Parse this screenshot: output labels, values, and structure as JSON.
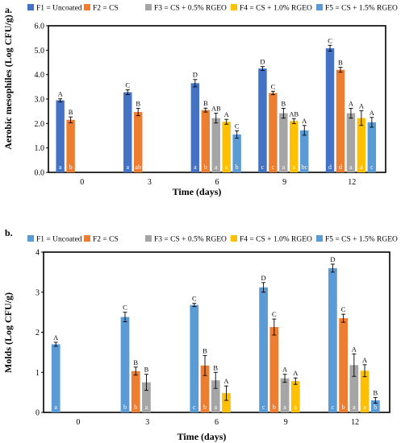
{
  "chart_data": [
    {
      "type": "bar",
      "panel_label": "a.",
      "xlabel": "Time (days)",
      "ylabel": "Aerobic mesophiles (Log CFU/g)",
      "ylim": [
        0,
        6
      ],
      "yticks": [
        "0.0",
        "1.0",
        "2.0",
        "3.0",
        "4.0",
        "5.0",
        "6.0"
      ],
      "grid": "none",
      "legend_position": "top",
      "categories": [
        "0",
        "3",
        "6",
        "9",
        "12"
      ],
      "series": [
        {
          "name": "F1 = Uncoated",
          "color": "#4472C4",
          "values": [
            2.95,
            3.28,
            3.65,
            4.25,
            5.08
          ],
          "errors": [
            0.06,
            0.1,
            0.15,
            0.08,
            0.12
          ],
          "top_letters": [
            "A",
            "C",
            "D",
            "D",
            "C"
          ],
          "bar_letters": [
            "a",
            "a",
            "a",
            "c",
            "d"
          ]
        },
        {
          "name": "F2 = CS",
          "color": "#ED7D31",
          "values": [
            2.15,
            2.47,
            2.55,
            3.25,
            4.2
          ],
          "errors": [
            0.12,
            0.15,
            0.08,
            0.07,
            0.1
          ],
          "top_letters": [
            "B",
            "B",
            "B",
            "C",
            "B"
          ],
          "bar_letters": [
            "b",
            "ab",
            "b",
            "c",
            "d"
          ]
        },
        {
          "name": "F3 = CS + 0.5% RGEO",
          "color": "#A5A5A5",
          "values": [
            null,
            null,
            2.22,
            2.42,
            2.42
          ],
          "errors": [
            null,
            null,
            0.2,
            0.2,
            0.2
          ],
          "top_letters": [
            "",
            "",
            "AB",
            "B",
            "A"
          ],
          "bar_letters": [
            "",
            "",
            "a",
            "a",
            "a"
          ]
        },
        {
          "name": "F4 = CS + 1.0% RGEO",
          "color": "#FFC000",
          "values": [
            null,
            null,
            2.07,
            2.1,
            2.22
          ],
          "errors": [
            null,
            null,
            0.1,
            0.1,
            0.3
          ],
          "top_letters": [
            "",
            "",
            "A",
            "AB",
            "A"
          ],
          "bar_letters": [
            "",
            "",
            "a",
            "a",
            "a"
          ]
        },
        {
          "name": "F5 = CS + 1.5% RGEO",
          "color": "#5B9BD5",
          "values": [
            null,
            null,
            1.55,
            1.72,
            2.05
          ],
          "errors": [
            null,
            null,
            0.15,
            0.2,
            0.2
          ],
          "top_letters": [
            "",
            "",
            "C",
            "A",
            "A"
          ],
          "bar_letters": [
            "",
            "",
            "b",
            "bc",
            "c"
          ]
        }
      ]
    },
    {
      "type": "bar",
      "panel_label": "b.",
      "xlabel": "Time (days)",
      "ylabel": "Molds (Log CFU/g)",
      "ylim": [
        0,
        4
      ],
      "yticks": [
        "0",
        "1",
        "2",
        "3",
        "4"
      ],
      "grid": "none",
      "legend_position": "top",
      "categories": [
        "0",
        "3",
        "6",
        "9",
        "12"
      ],
      "series": [
        {
          "name": "F1 = Uncoated",
          "color": "#5B9BD5",
          "values": [
            1.7,
            2.38,
            2.68,
            3.12,
            3.6
          ],
          "errors": [
            0.05,
            0.12,
            0.04,
            0.12,
            0.1
          ],
          "top_letters": [
            "A",
            "C",
            "C",
            "D",
            "D"
          ],
          "bar_letters": [
            "a",
            "b",
            "c",
            "c",
            "c"
          ]
        },
        {
          "name": "F2 = CS",
          "color": "#ED7D31",
          "values": [
            null,
            1.03,
            1.17,
            2.13,
            2.35
          ],
          "errors": [
            null,
            0.1,
            0.25,
            0.2,
            0.1
          ],
          "top_letters": [
            "",
            "B",
            "B",
            "C",
            "C"
          ],
          "bar_letters": [
            "",
            "b",
            "b",
            "b",
            "b"
          ]
        },
        {
          "name": "F3 = CS + 0.5% RGEO",
          "color": "#A5A5A5",
          "values": [
            null,
            0.75,
            0.8,
            0.85,
            1.18
          ],
          "errors": [
            null,
            0.2,
            0.2,
            0.1,
            0.28
          ],
          "top_letters": [
            "",
            "B",
            "B",
            "A",
            "A"
          ],
          "bar_letters": [
            "",
            "a",
            "a",
            "a",
            "a"
          ]
        },
        {
          "name": "F4 = CS + 1.0% RGEO",
          "color": "#FFC000",
          "values": [
            null,
            null,
            0.48,
            0.78,
            1.04
          ],
          "errors": [
            null,
            null,
            0.18,
            0.08,
            0.15
          ],
          "top_letters": [
            "",
            "",
            "A",
            "A",
            "A"
          ],
          "bar_letters": [
            "",
            "",
            "",
            "a",
            "a"
          ]
        },
        {
          "name": "F5 = CS + 1.5% RGEO",
          "color": "#5B9BD5",
          "values": [
            null,
            null,
            null,
            null,
            0.3
          ],
          "errors": [
            null,
            null,
            null,
            null,
            0.07
          ],
          "top_letters": [
            "",
            "",
            "",
            "",
            "B"
          ],
          "bar_letters": [
            "",
            "",
            "",
            "",
            "b"
          ]
        }
      ]
    }
  ]
}
